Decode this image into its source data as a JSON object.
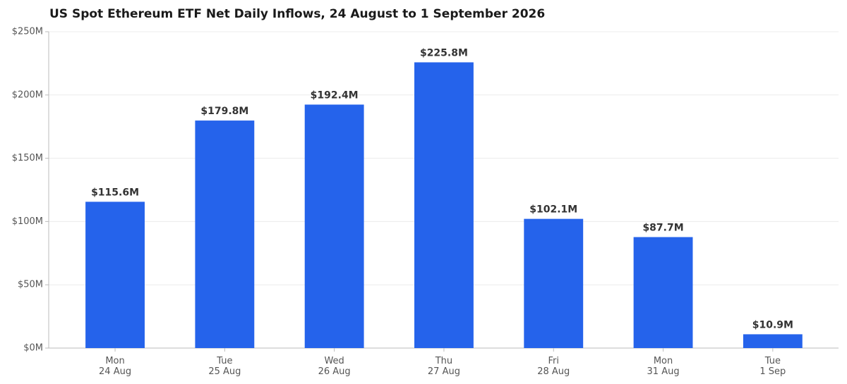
{
  "chart_data": {
    "type": "bar",
    "title": "US Spot Ethereum ETF Net Daily Inflows, 24 August to 1 September 2026",
    "categories": [
      [
        "Mon",
        "24 Aug"
      ],
      [
        "Tue",
        "25 Aug"
      ],
      [
        "Wed",
        "26 Aug"
      ],
      [
        "Thu",
        "27 Aug"
      ],
      [
        "Fri",
        "28 Aug"
      ],
      [
        "Mon",
        "31 Aug"
      ],
      [
        "Tue",
        "1 Sep"
      ]
    ],
    "values": [
      115600000,
      179800000,
      192400000,
      225800000,
      102100000,
      87700000,
      10900000
    ],
    "value_labels": [
      "$115.6M",
      "$179.8M",
      "$192.4M",
      "$225.8M",
      "$102.1M",
      "$87.7M",
      "$10.9M"
    ],
    "color": "#2563eb",
    "ylim": [
      0,
      250000000
    ],
    "yticks": [
      {
        "value": 0,
        "label": "$0M"
      },
      {
        "value": 50000000,
        "label": "$50M"
      },
      {
        "value": 100000000,
        "label": "$100M"
      },
      {
        "value": 150000000,
        "label": "$150M"
      },
      {
        "value": 200000000,
        "label": "$200M"
      },
      {
        "value": 250000000,
        "label": "$250M"
      }
    ],
    "grid": true
  }
}
